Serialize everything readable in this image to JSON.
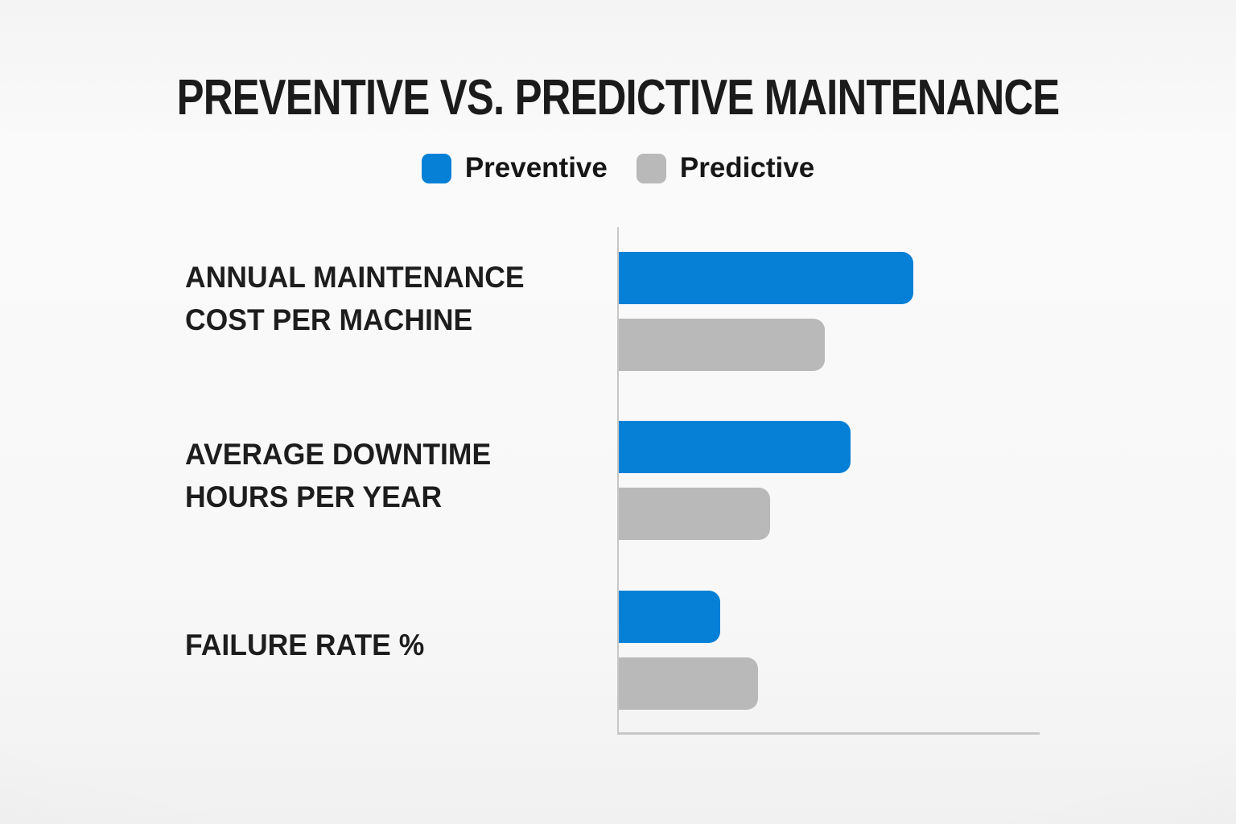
{
  "title": "PREVENTIVE VS. PREDICTIVE MAINTENANCE",
  "legend": {
    "items": [
      {
        "label": "Preventive",
        "color": "#0680d7"
      },
      {
        "label": "Predictive",
        "color": "#b9b9b9"
      }
    ]
  },
  "chart_data": {
    "type": "bar",
    "orientation": "horizontal",
    "title": "PREVENTIVE VS. PREDICTIVE MAINTENANCE",
    "categories": [
      [
        "ANNUAL MAINTENANCE",
        "COST PER MACHINE"
      ],
      [
        "AVERAGE DOWNTIME",
        "HOURS PER YEAR"
      ],
      [
        "FAILURE RATE %"
      ]
    ],
    "series": [
      {
        "name": "Preventive",
        "color": "#0680d7",
        "values": [
          70,
          55,
          24
        ]
      },
      {
        "name": "Predictive",
        "color": "#b9b9b9",
        "values": [
          49,
          36,
          33
        ]
      }
    ],
    "xlim": [
      0,
      100
    ],
    "xlabel": "",
    "ylabel": "",
    "tick_labels_shown": false,
    "grid": false,
    "legend_position": "top-center",
    "note": "Axis has no numeric tick labels; values estimated as percent of axis length."
  },
  "colors": {
    "preventive": "#0680d7",
    "predictive": "#b9b9b9",
    "axis": "#c7c7c7",
    "text": "#1d1d1d",
    "background": "#f7f7f7"
  }
}
